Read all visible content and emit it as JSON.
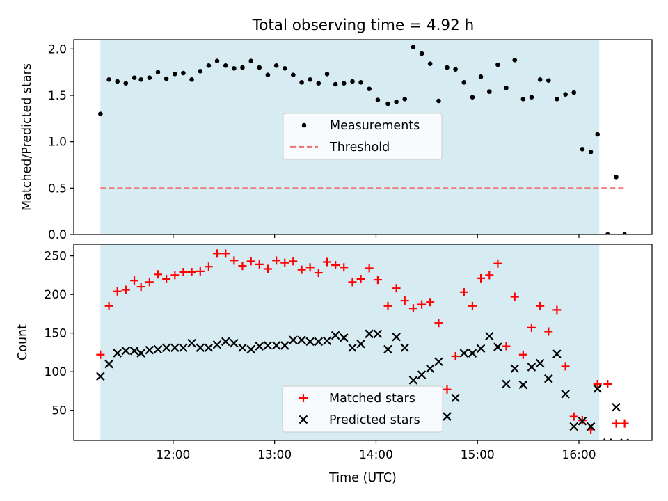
{
  "figure": {
    "title": "Total observing time = 4.92 h",
    "shaded_window_color": "#add8e6",
    "shaded_window_start_hour": 11.283,
    "shaded_window_end_hour": 16.2
  },
  "chart_data": [
    {
      "type": "scatter",
      "panel": "top",
      "ylabel": "Matched/Predicted stars",
      "xlim": [
        11.02,
        16.72
      ],
      "ylim": [
        0,
        2.1
      ],
      "yticks": [
        0.0,
        0.5,
        1.0,
        1.5,
        2.0
      ],
      "ytick_labels": [
        "0.0",
        "0.5",
        "1.0",
        "1.5",
        "2.0"
      ],
      "legend_position": "center",
      "series": [
        {
          "name": "Measurements",
          "color": "#000000",
          "marker": "dot",
          "x": [
            11.283,
            11.367,
            11.45,
            11.533,
            11.617,
            11.683,
            11.767,
            11.85,
            11.933,
            12.017,
            12.1,
            12.183,
            12.267,
            12.35,
            12.433,
            12.517,
            12.6,
            12.683,
            12.767,
            12.85,
            12.933,
            13.017,
            13.1,
            13.183,
            13.267,
            13.35,
            13.433,
            13.517,
            13.6,
            13.683,
            13.767,
            13.85,
            13.933,
            14.017,
            14.117,
            14.2,
            14.283,
            14.367,
            14.45,
            14.533,
            14.617,
            14.7,
            14.783,
            14.867,
            14.95,
            15.033,
            15.117,
            15.2,
            15.283,
            15.367,
            15.45,
            15.533,
            15.617,
            15.7,
            15.783,
            15.867,
            15.95,
            16.033,
            16.117,
            16.183,
            16.283,
            16.367,
            16.45
          ],
          "y": [
            1.3,
            1.67,
            1.65,
            1.63,
            1.69,
            1.67,
            1.69,
            1.75,
            1.68,
            1.73,
            1.74,
            1.67,
            1.76,
            1.82,
            1.87,
            1.82,
            1.79,
            1.8,
            1.87,
            1.8,
            1.72,
            1.82,
            1.79,
            1.72,
            1.64,
            1.67,
            1.63,
            1.73,
            1.62,
            1.63,
            1.65,
            1.64,
            1.57,
            1.45,
            1.41,
            1.43,
            1.46,
            2.02,
            1.95,
            1.84,
            1.44,
            1.8,
            1.78,
            1.64,
            1.48,
            1.7,
            1.54,
            1.83,
            1.58,
            1.88,
            1.46,
            1.48,
            1.67,
            1.66,
            1.46,
            1.51,
            1.53,
            0.92,
            0.89,
            1.08,
            0.0,
            0.62,
            0.0
          ]
        },
        {
          "name": "Threshold",
          "color": "#f07878",
          "style": "dashed",
          "x": [
            11.283,
            16.45
          ],
          "y": [
            0.5,
            0.5
          ]
        }
      ]
    },
    {
      "type": "scatter",
      "panel": "bottom",
      "xlabel": "Time (UTC)",
      "ylabel": "Count",
      "xlim": [
        11.02,
        16.72
      ],
      "ylim": [
        11,
        265
      ],
      "xticks": [
        12,
        13,
        14,
        15,
        16
      ],
      "xtick_labels": [
        "12:00",
        "13:00",
        "14:00",
        "15:00",
        "16:00"
      ],
      "yticks": [
        50,
        100,
        150,
        200,
        250
      ],
      "ytick_labels": [
        "50",
        "100",
        "150",
        "200",
        "250"
      ],
      "legend_position": "lower center",
      "series": [
        {
          "name": "Matched stars",
          "color": "#ff0000",
          "marker": "plus",
          "x": [
            11.283,
            11.367,
            11.45,
            11.533,
            11.617,
            11.683,
            11.767,
            11.85,
            11.933,
            12.017,
            12.1,
            12.183,
            12.267,
            12.35,
            12.433,
            12.517,
            12.6,
            12.683,
            12.767,
            12.85,
            12.933,
            13.017,
            13.1,
            13.183,
            13.267,
            13.35,
            13.433,
            13.517,
            13.6,
            13.683,
            13.767,
            13.85,
            13.933,
            14.017,
            14.117,
            14.2,
            14.283,
            14.367,
            14.45,
            14.533,
            14.617,
            14.7,
            14.783,
            14.867,
            14.95,
            15.033,
            15.117,
            15.2,
            15.283,
            15.367,
            15.45,
            15.533,
            15.617,
            15.7,
            15.783,
            15.867,
            15.95,
            16.033,
            16.117,
            16.183,
            16.283,
            16.367,
            16.45
          ],
          "y": [
            122,
            185,
            204,
            206,
            218,
            210,
            216,
            226,
            220,
            225,
            229,
            229,
            230,
            236,
            253,
            253,
            244,
            237,
            243,
            239,
            233,
            244,
            241,
            243,
            232,
            235,
            228,
            242,
            238,
            235,
            216,
            220,
            234,
            219,
            185,
            208,
            192,
            182,
            187,
            190,
            163,
            77,
            120,
            203,
            185,
            221,
            225,
            240,
            133,
            197,
            122,
            157,
            185,
            152,
            180,
            107,
            42,
            37,
            25,
            84,
            84,
            33,
            33
          ]
        },
        {
          "name": "Predicted stars",
          "color": "#000000",
          "marker": "x",
          "x": [
            11.283,
            11.367,
            11.45,
            11.533,
            11.617,
            11.683,
            11.767,
            11.85,
            11.933,
            12.017,
            12.1,
            12.183,
            12.267,
            12.35,
            12.433,
            12.517,
            12.6,
            12.683,
            12.767,
            12.85,
            12.933,
            13.017,
            13.1,
            13.183,
            13.267,
            13.35,
            13.433,
            13.517,
            13.6,
            13.683,
            13.767,
            13.85,
            13.933,
            14.017,
            14.117,
            14.2,
            14.283,
            14.367,
            14.45,
            14.533,
            14.617,
            14.7,
            14.783,
            14.867,
            14.95,
            15.033,
            15.117,
            15.2,
            15.283,
            15.367,
            15.45,
            15.533,
            15.617,
            15.7,
            15.783,
            15.867,
            15.95,
            16.033,
            16.117,
            16.183,
            16.283,
            16.367,
            16.45
          ],
          "y": [
            94,
            110,
            124,
            127,
            127,
            124,
            128,
            129,
            131,
            131,
            131,
            137,
            131,
            131,
            135,
            139,
            137,
            131,
            129,
            133,
            134,
            134,
            134,
            141,
            141,
            139,
            139,
            140,
            147,
            144,
            131,
            136,
            149,
            149,
            129,
            145,
            131,
            89,
            96,
            104,
            113,
            42,
            66,
            124,
            124,
            130,
            146,
            132,
            84,
            104,
            83,
            106,
            111,
            91,
            123,
            71,
            29,
            36,
            29,
            78,
            8,
            54,
            8
          ]
        }
      ]
    }
  ]
}
